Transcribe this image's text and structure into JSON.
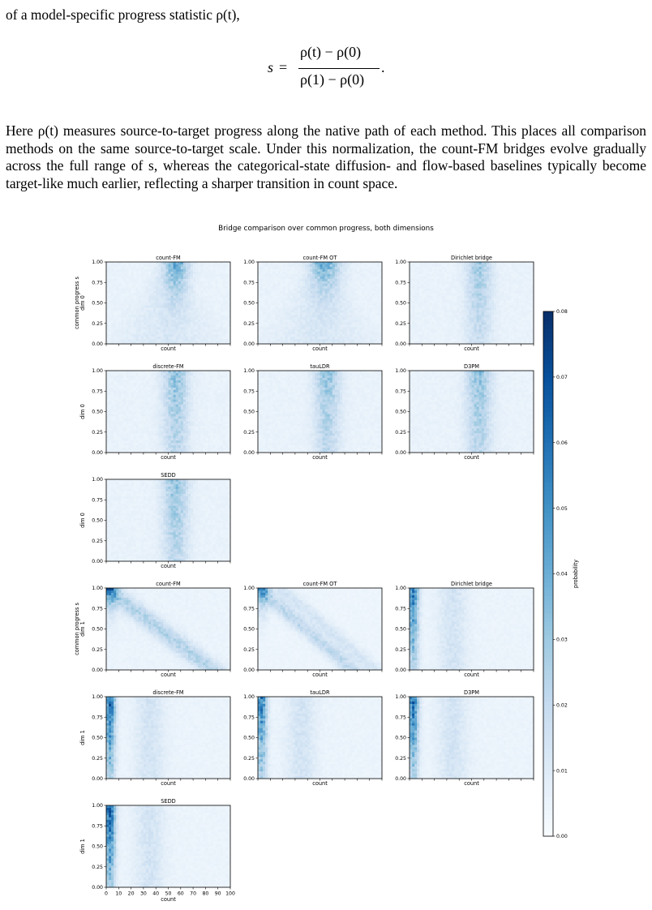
{
  "text": {
    "line1": "of a model-specific progress statistic ρ(t),",
    "eq_lhs": "s",
    "eq_sign": "=",
    "eq_num": "ρ(t) − ρ(0)",
    "eq_den": "ρ(1) − ρ(0)",
    "eq_end": ".",
    "para2": "Here ρ(t) measures source-to-target progress along the native path of each method. This places all comparison methods on the same source-to-target scale. Under this normalization, the count-FM bridges evolve gradually across the full range of s, whereas the categorical-state diffusion- and flow-based baselines typically become target-like much earlier, reflecting a sharper transition in count space."
  },
  "figure": {
    "suptitle": "Bridge comparison over common progress, both dimensions",
    "colorbar_label": "probability",
    "colorbar_ticks": [
      "0.00",
      "0.01",
      "0.02",
      "0.03",
      "0.04",
      "0.05",
      "0.06",
      "0.07",
      "0.08"
    ],
    "colorbar_range": [
      0,
      0.08
    ],
    "cmap": [
      "#f7fbff",
      "#deebf7",
      "#c6dbef",
      "#9ecae1",
      "#6baed6",
      "#4292c6",
      "#2171b5",
      "#08519c",
      "#08306b"
    ],
    "y_ticks": [
      "0.00",
      "0.25",
      "0.50",
      "0.75",
      "1.00"
    ],
    "x_ticks": [
      "0",
      "10",
      "20",
      "30",
      "40",
      "50",
      "60",
      "70",
      "80",
      "90",
      "100"
    ],
    "x_label": "count",
    "panels": [
      {
        "title": "count-FM",
        "ylabel": "common progress s\ndim 0"
      },
      {
        "title": "count-FM OT",
        "ylabel": ""
      },
      {
        "title": "Dirichlet bridge",
        "ylabel": ""
      },
      {
        "title": "discrete-FM",
        "ylabel": "dim 0"
      },
      {
        "title": "tauLDR",
        "ylabel": ""
      },
      {
        "title": "D3PM",
        "ylabel": ""
      },
      {
        "title": "SEDD",
        "ylabel": "dim 0"
      },
      {
        "title": "count-FM",
        "ylabel": "common progress s\ndim 1"
      },
      {
        "title": "count-FM OT",
        "ylabel": ""
      },
      {
        "title": "Dirichlet bridge",
        "ylabel": ""
      },
      {
        "title": "discrete-FM",
        "ylabel": "dim 1"
      },
      {
        "title": "tauLDR",
        "ylabel": ""
      },
      {
        "title": "D3PM",
        "ylabel": ""
      },
      {
        "title": "SEDD",
        "ylabel": "dim 1"
      }
    ]
  },
  "chart_data": {
    "type": "heatmap",
    "title": "Bridge comparison over common progress, both dimensions",
    "xlabel": "count",
    "ylabel": "common progress s",
    "xlim": [
      0,
      100
    ],
    "ylim": [
      0,
      1
    ],
    "colorbar": {
      "label": "probability",
      "range": [
        0,
        0.08
      ]
    },
    "panels": [
      {
        "dimension": "dim 0",
        "method": "count-FM",
        "description": "mass spreads from broad low-probability distribution at s=0 toward concentration near count ~55-60 at s=1"
      },
      {
        "dimension": "dim 0",
        "method": "count-FM OT",
        "description": "similar to count-FM, concentration near count ~55-60 at s=1"
      },
      {
        "dimension": "dim 0",
        "method": "Dirichlet bridge",
        "description": "vertical band near count ~55 across all s"
      },
      {
        "dimension": "dim 0",
        "method": "discrete-FM",
        "description": "vertical band near count ~55 across all s"
      },
      {
        "dimension": "dim 0",
        "method": "tauLDR",
        "description": "vertical band near count ~55 across all s"
      },
      {
        "dimension": "dim 0",
        "method": "D3PM",
        "description": "vertical band near count ~55 across all s"
      },
      {
        "dimension": "dim 0",
        "method": "SEDD",
        "description": "vertical band near count ~55 across all s"
      },
      {
        "dimension": "dim 1",
        "method": "count-FM",
        "description": "diagonal band from count ~0 at s=1 to spread at s=0"
      },
      {
        "dimension": "dim 1",
        "method": "count-FM OT",
        "description": "diagonal bands from low counts at s=1"
      },
      {
        "dimension": "dim 1",
        "method": "Dirichlet bridge",
        "description": "strong vertical band near count ~3 and weak band near ~35"
      },
      {
        "dimension": "dim 1",
        "method": "discrete-FM",
        "description": "strong vertical band near count ~3 and weak band near ~35"
      },
      {
        "dimension": "dim 1",
        "method": "tauLDR",
        "description": "strong vertical band near count ~3 and weak band near ~35"
      },
      {
        "dimension": "dim 1",
        "method": "D3PM",
        "description": "strong vertical band near count ~3 and weak band near ~35"
      },
      {
        "dimension": "dim 1",
        "method": "SEDD",
        "description": "strong vertical band near count ~3 and weak band near ~35"
      }
    ]
  }
}
